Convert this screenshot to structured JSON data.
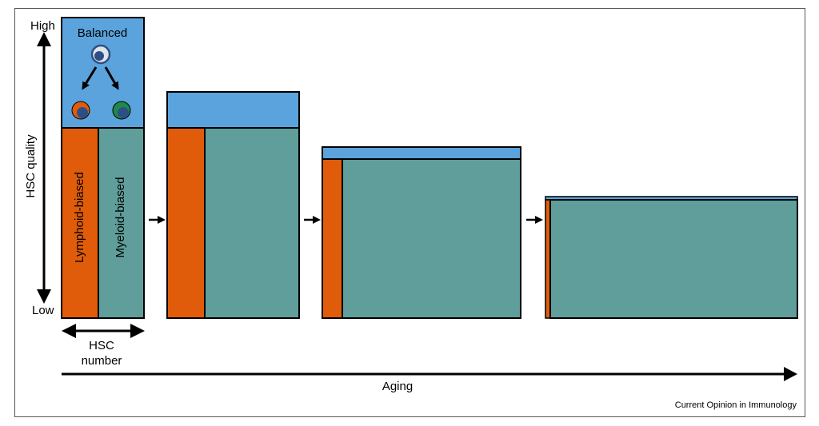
{
  "axis": {
    "y_high": "High",
    "y_low": "Low",
    "y_label": "HSC quality",
    "x_label_line1": "HSC",
    "x_label_line2": "number",
    "aging_label": "Aging"
  },
  "panel1": {
    "balanced_label": "Balanced",
    "lymphoid_label": "Lymphoid-biased",
    "myeloid_label": "Myeloid-biased"
  },
  "credit": "Current Opinion in Immunology",
  "colors": {
    "balanced": "#5ba3dc",
    "lymphoid": "#e05c0a",
    "myeloid": "#5f9e9a",
    "cell_green": "#1e8a4a",
    "cell_nucleus": "#2e4f86",
    "outline": "#000000"
  },
  "icons": [
    "hsc-cell-icon",
    "lymphoid-cell-icon",
    "myeloid-cell-icon",
    "arrow-icon"
  ]
}
